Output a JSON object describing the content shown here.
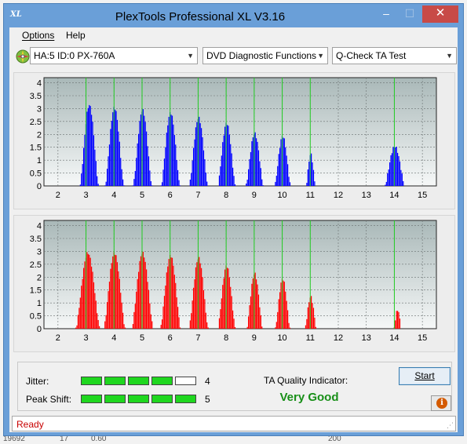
{
  "window": {
    "title": "PlexTools Professional XL V3.16",
    "app_icon_text": "XL",
    "controls": {
      "minimize": "–",
      "maximize": "☐",
      "close": "✕"
    }
  },
  "menu": {
    "items": [
      "Options",
      "Help"
    ]
  },
  "toolbar": {
    "drive": "HA:5 ID:0  PX-760A",
    "function": "DVD Diagnostic Functions",
    "test": "Q-Check TA Test"
  },
  "charts": {
    "x_ticks": [
      "2",
      "3",
      "4",
      "5",
      "6",
      "7",
      "8",
      "9",
      "10",
      "11",
      "12",
      "13",
      "14",
      "15"
    ],
    "y_ticks": [
      "0",
      "0.5",
      "1",
      "1.5",
      "2",
      "2.5",
      "3",
      "3.5",
      "4"
    ]
  },
  "chart_data": [
    {
      "type": "bar",
      "panel": "top",
      "color": "#0000ff",
      "x_range": [
        1.5,
        15.5
      ],
      "ylim": [
        0,
        4.2
      ],
      "marker_lines_at": [
        3,
        4,
        5,
        6,
        7,
        8,
        9,
        10,
        11,
        14
      ],
      "marker_color": "#22cc22",
      "peaks": [
        {
          "center": 3.1,
          "height": 3.2,
          "halfwidth": 0.35
        },
        {
          "center": 4.0,
          "height": 3.1,
          "halfwidth": 0.35
        },
        {
          "center": 5.0,
          "height": 3.0,
          "halfwidth": 0.35
        },
        {
          "center": 6.0,
          "height": 2.9,
          "halfwidth": 0.35
        },
        {
          "center": 7.0,
          "height": 2.7,
          "halfwidth": 0.35
        },
        {
          "center": 8.0,
          "height": 2.5,
          "halfwidth": 0.33
        },
        {
          "center": 9.0,
          "height": 2.1,
          "halfwidth": 0.33
        },
        {
          "center": 10.0,
          "height": 2.0,
          "halfwidth": 0.3
        },
        {
          "center": 11.0,
          "height": 1.3,
          "halfwidth": 0.18
        },
        {
          "center": 14.0,
          "height": 1.6,
          "halfwidth": 0.38
        }
      ]
    },
    {
      "type": "bar",
      "panel": "bottom",
      "color": "#ff0000",
      "x_range": [
        1.5,
        15.5
      ],
      "ylim": [
        0,
        4.2
      ],
      "marker_lines_at": [
        3,
        4,
        5,
        6,
        7,
        8,
        9,
        10,
        11,
        14
      ],
      "marker_color": "#22cc22",
      "peaks": [
        {
          "center": 3.05,
          "height": 3.0,
          "halfwidth": 0.45
        },
        {
          "center": 4.0,
          "height": 3.0,
          "halfwidth": 0.4
        },
        {
          "center": 5.0,
          "height": 3.0,
          "halfwidth": 0.4
        },
        {
          "center": 6.0,
          "height": 2.9,
          "halfwidth": 0.38
        },
        {
          "center": 7.0,
          "height": 2.8,
          "halfwidth": 0.36
        },
        {
          "center": 8.0,
          "height": 2.5,
          "halfwidth": 0.33
        },
        {
          "center": 9.0,
          "height": 2.2,
          "halfwidth": 0.3
        },
        {
          "center": 10.0,
          "height": 2.0,
          "halfwidth": 0.28
        },
        {
          "center": 11.0,
          "height": 1.3,
          "halfwidth": 0.22
        },
        {
          "center": 14.1,
          "height": 0.8,
          "halfwidth": 0.15
        }
      ]
    }
  ],
  "metrics": {
    "jitter_label": "Jitter:",
    "jitter_value": "4",
    "jitter_level": 4,
    "peak_shift_label": "Peak Shift:",
    "peak_shift_value": "5",
    "peak_shift_level": 5,
    "segments_total": 5,
    "ta_label": "TA Quality Indicator:",
    "ta_value": "Very Good",
    "start_label": "Start",
    "info_label": "i"
  },
  "status": {
    "text": "Ready"
  },
  "background_text": [
    "19692",
    "17",
    "0.60",
    "200"
  ]
}
